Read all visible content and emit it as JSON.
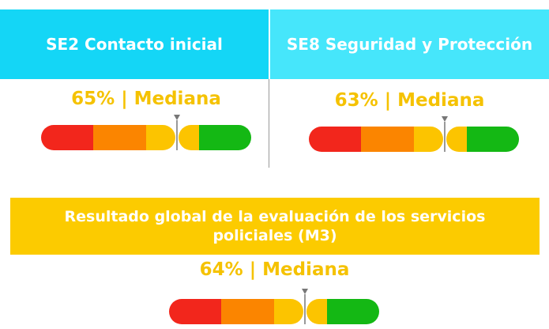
{
  "panels": [
    {
      "title": "SE2  Contacto inicial",
      "score": "65% | Mediana"
    },
    {
      "title": "SE8  Seguridad y Protección",
      "score": "63% | Mediana"
    }
  ],
  "global": {
    "title": "Resultado global de la evaluación de los servicios policiales (M3)",
    "score": "64% | Mediana"
  }
}
